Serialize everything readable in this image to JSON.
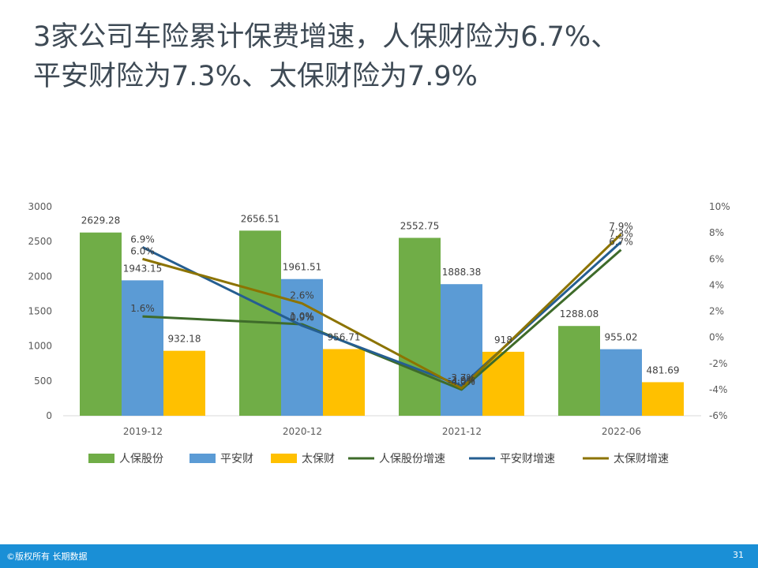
{
  "title": {
    "line1": "3家公司车险累计保费增速，人保财险为6.7%、",
    "line2": "平安财险为7.3%、太保财险为7.9%"
  },
  "footer": {
    "copyright": "©版权所有 长期数据",
    "page_number": "31"
  },
  "colors": {
    "picc_bar": "#70ad47",
    "pingan_bar": "#5b9bd5",
    "cpic_bar": "#ffc000",
    "picc_line": "#3e6b2a",
    "pingan_line": "#255e91",
    "cpic_line": "#8c7300"
  },
  "chart_data": {
    "type": "bar",
    "categories": [
      "2019-12",
      "2020-12",
      "2021-12",
      "2022-06"
    ],
    "series": [
      {
        "name": "人保股份",
        "kind": "bar",
        "axis": "left",
        "values": [
          2629.28,
          2656.51,
          2552.75,
          1288.08
        ],
        "labels": [
          "2629.28",
          "2656.51",
          "2552.75",
          "1288.08"
        ]
      },
      {
        "name": "平安财",
        "kind": "bar",
        "axis": "left",
        "values": [
          1943.15,
          1961.51,
          1888.38,
          955.02
        ],
        "labels": [
          "1943.15",
          "1961.51",
          "1888.38",
          "955.02"
        ]
      },
      {
        "name": "太保财",
        "kind": "bar",
        "axis": "left",
        "values": [
          932.18,
          956.71,
          918,
          481.69
        ],
        "labels": [
          "932.18",
          "956.71",
          "918",
          "481.69"
        ]
      },
      {
        "name": "人保股份增速",
        "kind": "line",
        "axis": "right",
        "values": [
          1.6,
          1.0,
          -4.0,
          6.7
        ],
        "labels": [
          "1.6%",
          "1.0%",
          "-4.0%",
          "6.7%"
        ]
      },
      {
        "name": "平安财增速",
        "kind": "line",
        "axis": "right",
        "values": [
          6.9,
          0.9,
          -3.7,
          7.3
        ],
        "labels": [
          "6.9%",
          "0.9%",
          "-3.7%",
          "7.3%"
        ]
      },
      {
        "name": "太保财增速",
        "kind": "line",
        "axis": "right",
        "values": [
          6.0,
          2.6,
          -3.9,
          7.9
        ],
        "labels": [
          "6.0%",
          "2.6%",
          "-3.9%",
          "7.9%"
        ]
      }
    ],
    "y_left": {
      "min": 0,
      "max": 3000,
      "ticks": [
        0,
        500,
        1000,
        1500,
        2000,
        2500,
        3000
      ],
      "tick_labels": [
        "0",
        "500",
        "1000",
        "1500",
        "2000",
        "2500",
        "3000"
      ]
    },
    "y_right": {
      "min": -6,
      "max": 10,
      "ticks": [
        -6,
        -4,
        -2,
        0,
        2,
        4,
        6,
        8,
        10
      ],
      "tick_labels": [
        "-6%",
        "-4%",
        "-2%",
        "0%",
        "2%",
        "4%",
        "6%",
        "8%",
        "10%"
      ]
    },
    "grid": false,
    "legend": "bottom"
  }
}
